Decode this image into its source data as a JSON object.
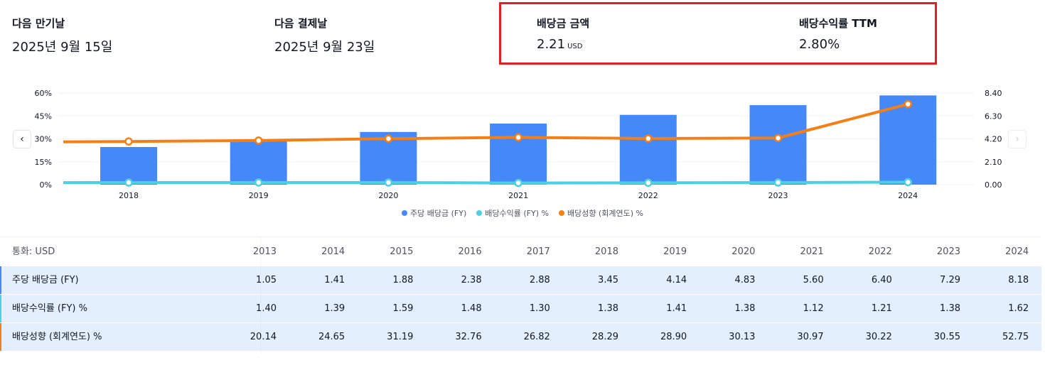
{
  "stats": {
    "next_ex_date": {
      "label": "다음 만기날",
      "value": "2025년 9월 15일"
    },
    "next_pay_date": {
      "label": "다음 결제날",
      "value": "2025년 9월 23일"
    },
    "dividend_amount": {
      "label": "배당금 금액",
      "value": "2.21",
      "unit": "USD"
    },
    "dividend_yield_ttm": {
      "label": "배당수익률 TTM",
      "value": "2.80%"
    }
  },
  "colors": {
    "bar": "#4589f8",
    "yield_line": "#4dd0e1",
    "payout_line": "#f57f17",
    "highlight": "#e31e25"
  },
  "chart_data": {
    "type": "bar",
    "title": "",
    "categories": [
      "2018",
      "2019",
      "2020",
      "2021",
      "2022",
      "2023",
      "2024"
    ],
    "left_axis": {
      "ticks": [
        "60%",
        "45%",
        "30%",
        "15%",
        "0%"
      ],
      "ylim": [
        0,
        60
      ]
    },
    "right_axis": {
      "ticks": [
        "8.40",
        "6.30",
        "4.20",
        "2.10",
        "0.00"
      ],
      "ylim": [
        0,
        8.4
      ]
    },
    "series": [
      {
        "name": "주당 배당금 (FY)",
        "type": "bar",
        "axis": "right",
        "values": [
          3.45,
          4.14,
          4.83,
          5.6,
          6.4,
          7.29,
          8.18
        ]
      },
      {
        "name": "배당수익률 (FY) %",
        "type": "line",
        "axis": "left",
        "values": [
          1.38,
          1.41,
          1.38,
          1.12,
          1.21,
          1.38,
          1.62
        ]
      },
      {
        "name": "배당성향 (회계연도) %",
        "type": "line",
        "axis": "left",
        "values": [
          28.29,
          28.9,
          30.13,
          30.97,
          30.22,
          30.55,
          52.75
        ]
      }
    ],
    "legend": [
      "주당 배당금 (FY)",
      "배당수익률 (FY) %",
      "배당성향 (회계연도) %"
    ],
    "legend_position": "bottom-center"
  },
  "nav": {
    "prev": "‹",
    "next": "›"
  },
  "table": {
    "currency_label": "통화: USD",
    "years": [
      "2013",
      "2014",
      "2015",
      "2016",
      "2017",
      "2018",
      "2019",
      "2020",
      "2021",
      "2022",
      "2023",
      "2024"
    ],
    "rows": [
      {
        "label": "주당 배당금 (FY)",
        "values": [
          "1.05",
          "1.41",
          "1.88",
          "2.38",
          "2.88",
          "3.45",
          "4.14",
          "4.83",
          "5.60",
          "6.40",
          "7.29",
          "8.18"
        ]
      },
      {
        "label": "배당수익률 (FY) %",
        "values": [
          "1.40",
          "1.39",
          "1.59",
          "1.48",
          "1.30",
          "1.38",
          "1.41",
          "1.38",
          "1.12",
          "1.21",
          "1.38",
          "1.62"
        ]
      },
      {
        "label": "배당성향 (회계연도) %",
        "values": [
          "20.14",
          "24.65",
          "31.19",
          "32.76",
          "26.82",
          "28.29",
          "28.90",
          "30.13",
          "30.97",
          "30.22",
          "30.55",
          "52.75"
        ]
      }
    ]
  }
}
